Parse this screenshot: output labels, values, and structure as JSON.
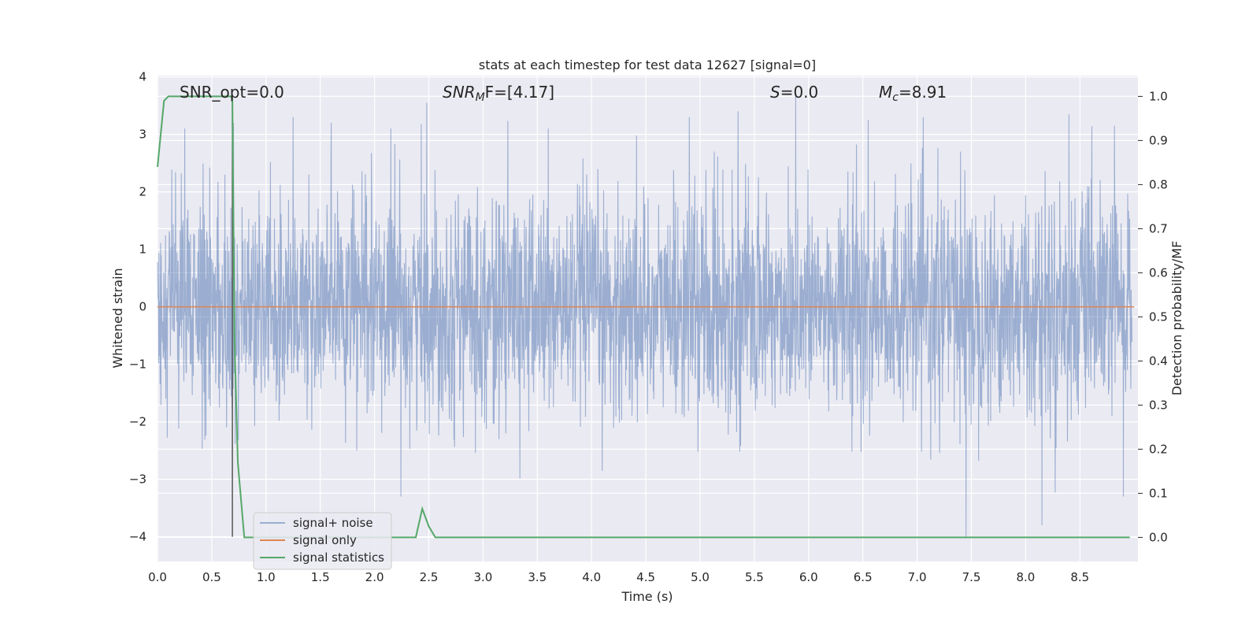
{
  "chart_data": {
    "type": "line",
    "title": "stats at each timestep for test data 12627 [signal=0]",
    "xlabel": "Time (s)",
    "ylabel": "Whitened strain",
    "y2label": "Detection probability/MF",
    "xlim": [
      0,
      9.0
    ],
    "ylim": [
      -4.4,
      4.0
    ],
    "y2lim": [
      -0.05,
      1.04
    ],
    "x_ticks": [
      "0.0",
      "0.5",
      "1.0",
      "1.5",
      "2.0",
      "2.5",
      "3.0",
      "3.5",
      "4.0",
      "4.5",
      "5.0",
      "5.5",
      "6.0",
      "6.5",
      "7.0",
      "7.5",
      "8.0",
      "8.5"
    ],
    "y_ticks": [
      "4",
      "3",
      "2",
      "1",
      "0",
      "−1",
      "−2",
      "−3",
      "−4"
    ],
    "y2_ticks": [
      "1.0",
      "0.9",
      "0.8",
      "0.7",
      "0.6",
      "0.5",
      "0.4",
      "0.3",
      "0.2",
      "0.1",
      "0.0"
    ],
    "grid": true,
    "legend_position": "lower-left",
    "annotations": {
      "snr_opt": "SNR_opt=0.0",
      "snr_mf_main": "SNR",
      "snr_mf_sub": "M",
      "snr_mf_tail": "F=[4.17]",
      "s_main": "S",
      "s_tail": "=0.0",
      "mc_main": "M",
      "mc_sub": "c",
      "mc_tail": "=8.91"
    },
    "vertical_marker_x": 0.69,
    "series": [
      {
        "name": "signal+ noise",
        "color": "#4c72b0",
        "axis": "left",
        "description_stats": {
          "typical_amplitude": 1.0,
          "spike_max": 3.7,
          "spike_min": -4.0
        },
        "spikes_x": [
          0.25,
          0.62,
          0.7,
          1.25,
          1.6,
          2.15,
          2.48,
          3.6,
          4.9,
          5.35,
          5.88,
          6.55,
          7.4,
          7.45,
          8.15,
          8.4,
          8.82,
          8.9
        ],
        "spikes_y": [
          3.1,
          2.3,
          3.2,
          3.3,
          3.2,
          3.1,
          3.55,
          3.1,
          3.3,
          3.4,
          3.7,
          3.25,
          2.7,
          -4.0,
          -3.8,
          3.35,
          3.15,
          -3.3
        ]
      },
      {
        "name": "signal only",
        "color": "#dd8452",
        "axis": "left",
        "x": [
          0,
          9.0
        ],
        "y": [
          0,
          0
        ]
      },
      {
        "name": "signal statistics",
        "color": "#55a868",
        "axis": "right",
        "x": [
          0.0,
          0.06,
          0.1,
          0.2,
          0.4,
          0.6,
          0.68,
          0.69,
          0.71,
          0.74,
          0.8,
          0.82,
          1.0,
          1.5,
          2.0,
          2.2,
          2.38,
          2.44,
          2.5,
          2.56,
          3.0,
          3.5,
          4.0,
          5.0,
          6.0,
          7.0,
          8.0,
          8.96
        ],
        "y": [
          0.84,
          0.99,
          1.0,
          1.0,
          1.0,
          1.0,
          1.0,
          0.99,
          0.45,
          0.17,
          0.0,
          0.0,
          0.0,
          0.0,
          0.0,
          0.0,
          0.0,
          0.065,
          0.025,
          0.0,
          0.0,
          0.0,
          0.0,
          0.0,
          0.0,
          0.0,
          0.0,
          0.0
        ]
      }
    ]
  }
}
